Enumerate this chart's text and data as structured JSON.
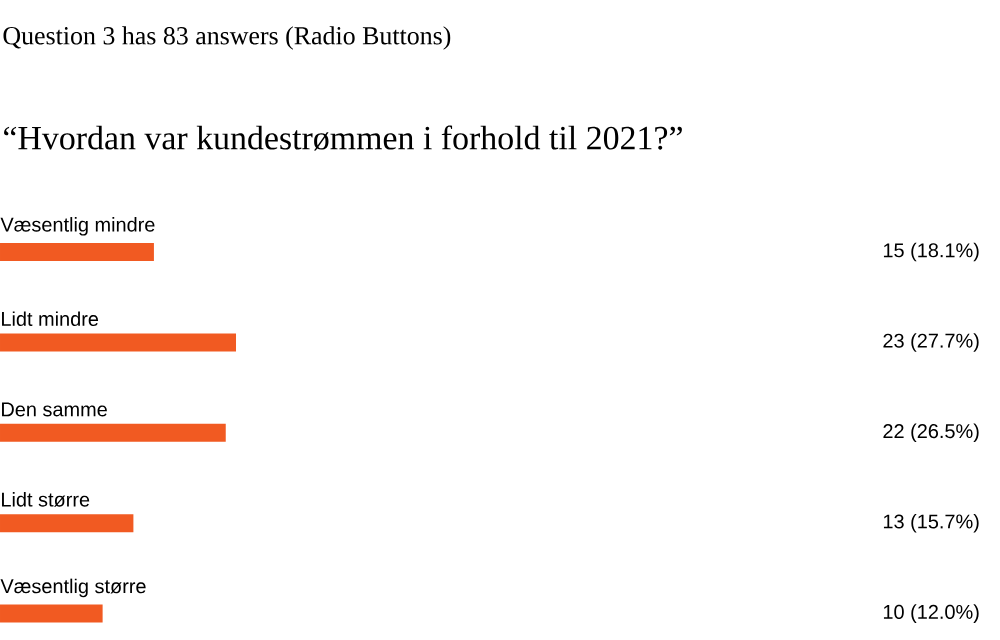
{
  "chart_data": {
    "type": "bar",
    "orientation": "horizontal",
    "title": "Question 3 has 83 answers (Radio Buttons)",
    "subtitle": "“Hvordan var kundestrømmen i forhold til 2021?”",
    "categories": [
      "Væsentlig mindre",
      "Lidt mindre",
      "Den samme",
      "Lidt større",
      "Væsentlig større"
    ],
    "values": [
      15,
      23,
      22,
      13,
      10
    ],
    "value_labels": [
      "15  (18.1%)",
      "23  (27.7%)",
      "22  (26.5%)",
      "13  (15.7%)",
      "10  (12.0%)"
    ],
    "color": "#f15a22"
  }
}
